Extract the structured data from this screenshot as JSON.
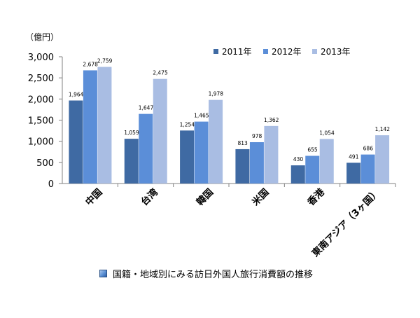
{
  "chart_data": {
    "type": "bar",
    "unit_label": "（億円）",
    "categories": [
      "中国",
      "台湾",
      "韓国",
      "米国",
      "香港",
      "東南アジア（3ヶ国）"
    ],
    "series": [
      {
        "name": "2011年",
        "color": "#3f6aa3",
        "values": [
          1964,
          1059,
          1254,
          813,
          430,
          491
        ]
      },
      {
        "name": "2012年",
        "color": "#5b8ed8",
        "values": [
          2678,
          1647,
          1465,
          978,
          655,
          686
        ]
      },
      {
        "name": "2013年",
        "color": "#a9bde3",
        "values": [
          2759,
          2475,
          1978,
          1362,
          1054,
          1142
        ]
      }
    ],
    "data_labels": [
      [
        "1,964",
        "1,059",
        "1,254",
        "813",
        "430",
        "491"
      ],
      [
        "2,678",
        "1,647",
        "1,465",
        "978",
        "655",
        "686"
      ],
      [
        "2,759",
        "2,475",
        "1,978",
        "1,362",
        "1,054",
        "1,142"
      ]
    ],
    "yticks": [
      0,
      500,
      1000,
      1500,
      2000,
      2500,
      3000
    ],
    "ytick_labels": [
      "0",
      "500",
      "1,000",
      "1,500",
      "2,000",
      "2,500",
      "3,000"
    ],
    "ylim": [
      0,
      3000
    ],
    "grid": false,
    "legend_position": "top-right"
  },
  "caption": {
    "text": "国籍・地域別にみる訪日外国人旅行消費額の推移"
  }
}
